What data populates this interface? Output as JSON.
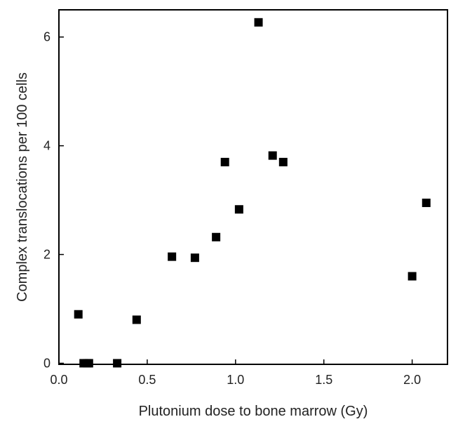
{
  "chart_data": {
    "type": "scatter",
    "title": "",
    "xlabel": "Plutonium dose to bone marrow (Gy)",
    "ylabel": "Complex translocations per 100 cells",
    "xlim": [
      0,
      2.2
    ],
    "ylim": [
      -0.02,
      6.5
    ],
    "xticks": [
      0,
      0.5,
      1,
      1.5,
      2
    ],
    "xtick_labels": [
      "0.0",
      "0.5",
      "1.0",
      "1.5",
      "2.0"
    ],
    "yticks": [
      0,
      2,
      4,
      6
    ],
    "ytick_labels": [
      "0",
      "2",
      "4",
      "6"
    ],
    "grid": false,
    "marker": "square",
    "marker_color": "#000000",
    "series": [
      {
        "points": [
          {
            "x": 0.11,
            "y": 0.9
          },
          {
            "x": 0.14,
            "y": 0.0
          },
          {
            "x": 0.16,
            "y": 0.0
          },
          {
            "x": 0.17,
            "y": 0.0
          },
          {
            "x": 0.33,
            "y": 0.0
          },
          {
            "x": 0.44,
            "y": 0.8
          },
          {
            "x": 0.64,
            "y": 1.96
          },
          {
            "x": 0.77,
            "y": 1.94
          },
          {
            "x": 0.89,
            "y": 2.32
          },
          {
            "x": 0.94,
            "y": 3.7
          },
          {
            "x": 1.02,
            "y": 2.83
          },
          {
            "x": 1.13,
            "y": 6.27
          },
          {
            "x": 1.21,
            "y": 3.82
          },
          {
            "x": 1.27,
            "y": 3.7
          },
          {
            "x": 2.0,
            "y": 1.6
          },
          {
            "x": 2.08,
            "y": 2.95
          }
        ]
      }
    ]
  }
}
